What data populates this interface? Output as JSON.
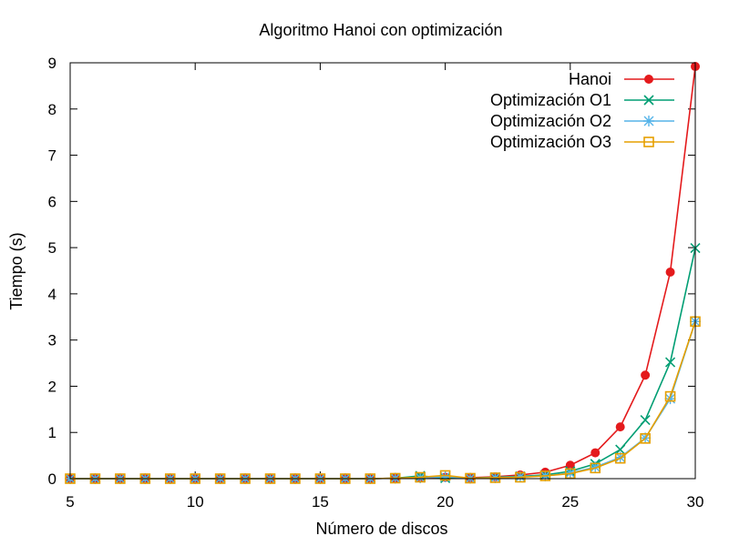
{
  "chart_data": {
    "type": "line",
    "title": "Algoritmo Hanoi con optimización",
    "xlabel": "Número de discos",
    "ylabel": "Tiempo (s)",
    "xlim": [
      5,
      30
    ],
    "ylim": [
      0,
      9
    ],
    "xticks": [
      "5",
      "10",
      "15",
      "20",
      "25",
      "30"
    ],
    "yticks": [
      "0",
      "1",
      "2",
      "3",
      "4",
      "5",
      "6",
      "7",
      "8",
      "9"
    ],
    "legend_position": "top-right",
    "grid": false,
    "x": [
      5,
      6,
      7,
      8,
      9,
      10,
      11,
      12,
      13,
      14,
      15,
      16,
      17,
      18,
      19,
      20,
      21,
      22,
      23,
      24,
      25,
      26,
      27,
      28,
      29,
      30
    ],
    "series": [
      {
        "name": "Hanoi",
        "color": "#e41a1c",
        "marker": "filled-circle",
        "values": [
          0,
          0,
          0,
          0,
          0,
          0,
          0,
          0,
          0,
          0,
          0,
          0,
          0,
          0.01,
          0.02,
          0.03,
          0.02,
          0.04,
          0.08,
          0.14,
          0.29,
          0.56,
          1.12,
          2.24,
          4.47,
          8.92
        ]
      },
      {
        "name": "Optimización O1",
        "color": "#009e73",
        "marker": "cross",
        "values": [
          0,
          0,
          0,
          0,
          0,
          0,
          0,
          0,
          0,
          0,
          0,
          0,
          0,
          0.01,
          0.06,
          0.01,
          0.01,
          0.03,
          0.05,
          0.08,
          0.16,
          0.32,
          0.63,
          1.27,
          2.52,
          4.99
        ]
      },
      {
        "name": "Optimización O2",
        "color": "#56b4e9",
        "marker": "star",
        "values": [
          0,
          0,
          0,
          0,
          0,
          0,
          0,
          0,
          0,
          0,
          0,
          0,
          0,
          0.01,
          0.02,
          0.04,
          0.01,
          0.02,
          0.04,
          0.06,
          0.12,
          0.25,
          0.46,
          0.88,
          1.73,
          3.4
        ]
      },
      {
        "name": "Optimización O3",
        "color": "#e69f00",
        "marker": "open-square",
        "values": [
          0,
          0,
          0,
          0,
          0,
          0,
          0,
          0,
          0,
          0,
          0,
          0,
          0,
          0.01,
          0.03,
          0.07,
          0.01,
          0.02,
          0.03,
          0.06,
          0.11,
          0.23,
          0.44,
          0.87,
          1.78,
          3.4
        ]
      }
    ]
  }
}
